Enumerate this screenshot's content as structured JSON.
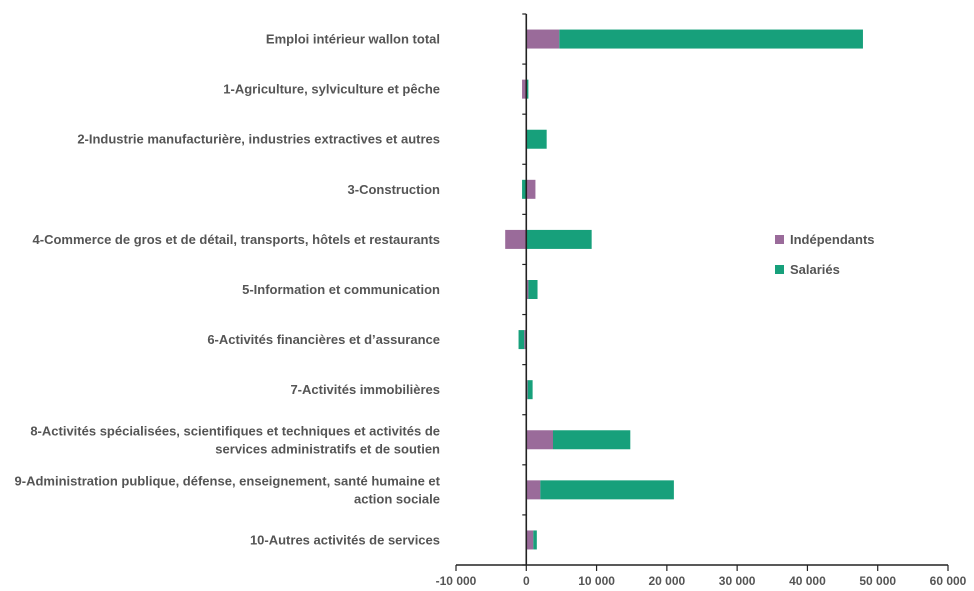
{
  "chart_data": {
    "type": "bar",
    "orientation": "horizontal",
    "stacked": true,
    "categories": [
      [
        "Emploi intérieur wallon total"
      ],
      [
        "1-Agriculture, sylviculture et pêche"
      ],
      [
        "2-Industrie manufacturière, industries extractives et autres"
      ],
      [
        "3-Construction"
      ],
      [
        "4-Commerce de gros et de détail, transports, hôtels et restaurants"
      ],
      [
        "5-Information et communication"
      ],
      [
        "6-Activités financières et d’assurance"
      ],
      [
        "7-Activités immobilières"
      ],
      [
        "8-Activités spécialisées, scientifiques et techniques et activités de",
        "services administratifs et de soutien"
      ],
      [
        "9-Administration publique, défense, enseignement, santé humaine et",
        "action sociale"
      ],
      [
        "10-Autres activités de services"
      ]
    ],
    "series": [
      {
        "name": "Indépendants",
        "color": "#9A6B9A",
        "values": [
          4700,
          -600,
          100,
          1300,
          -3000,
          300,
          -300,
          200,
          3800,
          2000,
          1000
        ]
      },
      {
        "name": "Salariés",
        "color": "#17A07B",
        "values": [
          43200,
          300,
          2800,
          -600,
          9300,
          1300,
          -800,
          700,
          11000,
          19000,
          500
        ]
      }
    ],
    "xlim": [
      -10000,
      60000
    ],
    "xticks": [
      -10000,
      0,
      10000,
      20000,
      30000,
      40000,
      50000,
      60000
    ],
    "xtick_labels": [
      "-10 000",
      "0",
      "10 000",
      "20 000",
      "30 000",
      "40 000",
      "50 000",
      "60 000"
    ],
    "title": "",
    "xlabel": "",
    "ylabel": "",
    "legend_position": "right",
    "grid": false
  }
}
